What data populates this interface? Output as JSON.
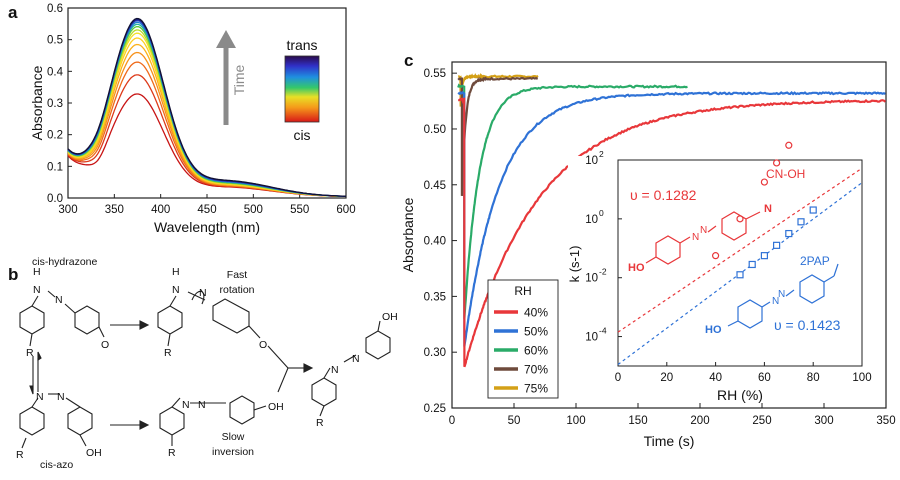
{
  "panels": {
    "a": "a",
    "b": "b",
    "c": "c"
  },
  "chart_data": [
    {
      "id": "a",
      "type": "line",
      "xlabel": "Wavelength (nm)",
      "ylabel": "Absorbance",
      "xlim": [
        300,
        600
      ],
      "ylim": [
        0,
        0.6
      ],
      "xticks": [
        300,
        350,
        400,
        450,
        500,
        550,
        600
      ],
      "yticks": [
        0.0,
        0.1,
        0.2,
        0.3,
        0.4,
        0.5,
        0.6
      ],
      "peak_wavelength": 375,
      "peak_values": [
        0.31,
        0.37,
        0.41,
        0.44,
        0.465,
        0.485,
        0.5,
        0.51,
        0.52,
        0.527,
        0.533,
        0.538,
        0.541,
        0.544
      ],
      "colorbar": {
        "top_label": "trans",
        "bottom_label": "cis"
      },
      "arrow_label": "Time",
      "colors": {
        "spectra": [
          "#c81414",
          "#dd3a1a",
          "#ef6a1a",
          "#f7921a",
          "#fbb21a",
          "#fed022",
          "#f2e028",
          "#b8dc2a",
          "#5cc83a",
          "#25b0a0",
          "#1e7fd0",
          "#2a3fc8",
          "#1a2280",
          "#111133"
        ]
      }
    },
    {
      "id": "c",
      "type": "line",
      "xlabel": "Time (s)",
      "ylabel": "Absorbance",
      "xlim": [
        0,
        350
      ],
      "ylim": [
        0.25,
        0.56
      ],
      "xticks": [
        0,
        50,
        100,
        150,
        200,
        250,
        300,
        350
      ],
      "yticks": [
        0.25,
        0.3,
        0.35,
        0.4,
        0.45,
        0.5,
        0.55
      ],
      "legend": {
        "title": "RH",
        "placement": "lower-left"
      },
      "series": [
        {
          "name": "40%",
          "color": "#e8373a",
          "t_start": 10,
          "t_end": 350,
          "a_min": 0.287,
          "a_final": 0.526
        },
        {
          "name": "50%",
          "color": "#2f72d6",
          "t_start": 10,
          "t_end": 350,
          "a_min": 0.305,
          "a_final": 0.532
        },
        {
          "name": "60%",
          "color": "#2aab68",
          "t_start": 10,
          "t_end": 190,
          "a_min": 0.33,
          "a_final": 0.538
        },
        {
          "name": "70%",
          "color": "#6e4a3c",
          "t_start": 8,
          "t_end": 70,
          "a_min": 0.44,
          "a_final": 0.545
        },
        {
          "name": "75%",
          "color": "#d4a017",
          "t_start": 7,
          "t_end": 70,
          "a_min": 0.52,
          "a_final": 0.547
        }
      ]
    },
    {
      "id": "c-inset",
      "type": "scatter",
      "xlabel": "RH (%)",
      "ylabel": "k (s-1)",
      "xlim": [
        0,
        100
      ],
      "ylim_log10": [
        -5,
        2
      ],
      "xticks": [
        0,
        20,
        40,
        60,
        80,
        100
      ],
      "ytick_exponents": [
        -4,
        -2,
        0,
        2
      ],
      "series": [
        {
          "name": "CN-OH",
          "color": "#e8373a",
          "marker": "circle",
          "slope_label": "υ = 0.1282",
          "x": [
            40,
            50,
            60,
            65,
            70
          ],
          "log10_k": [
            -1.25,
            0.0,
            1.25,
            1.9,
            2.5
          ],
          "fit_intercept_log10": -3.85,
          "fit_slope": 0.0557
        },
        {
          "name": "2PAP",
          "color": "#2f72d6",
          "marker": "square",
          "slope_label": "υ = 0.1423",
          "x": [
            50,
            55,
            60,
            65,
            70,
            75,
            80
          ],
          "log10_k": [
            -1.9,
            -1.55,
            -1.25,
            -0.9,
            -0.5,
            -0.1,
            0.3
          ],
          "fit_intercept_log10": -4.95,
          "fit_slope": 0.0618
        }
      ]
    }
  ],
  "scheme_b": {
    "cis_hydrazone": "cis-hydrazone",
    "cis_azo": "cis-azo",
    "fast_rotation_1": "Fast",
    "fast_rotation_2": "rotation",
    "slow_inversion_1": "Slow",
    "slow_inversion_2": "inversion",
    "atom_H": "H",
    "atom_N": "N",
    "atom_R": "R",
    "atom_O": "O",
    "atom_OH": "OH",
    "atom_HO": "HO"
  },
  "inset_molecules": {
    "cn_label": "CN-OH",
    "pap_label": "2PAP",
    "atom_N": "N",
    "atom_HO": "HO"
  }
}
